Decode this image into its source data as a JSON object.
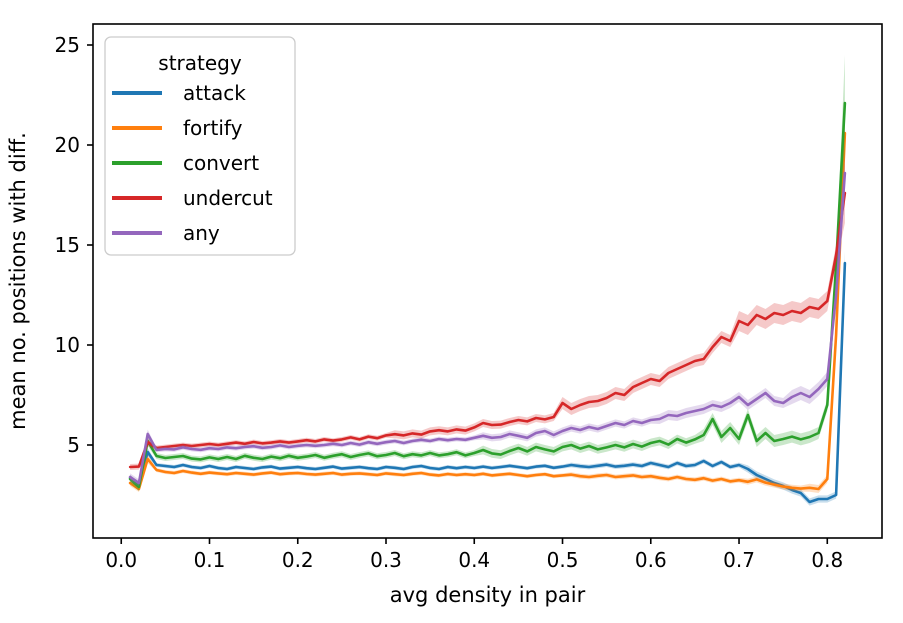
{
  "figure": {
    "background": "#ffffff",
    "text_color": "#000000"
  },
  "chart_data": {
    "type": "line",
    "title": "",
    "xlabel": "avg density in pair",
    "ylabel": "mean no. positions with diff.",
    "grid": false,
    "xlim": [
      -0.032,
      0.862
    ],
    "ylim": [
      0.35,
      26.05
    ],
    "x_ticks": [
      0.0,
      0.1,
      0.2,
      0.3,
      0.4,
      0.5,
      0.6,
      0.7,
      0.8
    ],
    "x_tick_labels": [
      "0.0",
      "0.1",
      "0.2",
      "0.3",
      "0.4",
      "0.5",
      "0.6",
      "0.7",
      "0.8"
    ],
    "y_ticks": [
      5,
      10,
      15,
      20,
      25
    ],
    "y_tick_labels": [
      "5",
      "10",
      "15",
      "20",
      "25"
    ],
    "legend": {
      "title": "strategy",
      "position": "upper left",
      "frame_color": "#cccccc"
    },
    "x": [
      0.01,
      0.02,
      0.03,
      0.04,
      0.05,
      0.06,
      0.07,
      0.08,
      0.09,
      0.1,
      0.11,
      0.12,
      0.13,
      0.14,
      0.15,
      0.16,
      0.17,
      0.18,
      0.19,
      0.2,
      0.21,
      0.22,
      0.23,
      0.24,
      0.25,
      0.26,
      0.27,
      0.28,
      0.29,
      0.3,
      0.31,
      0.32,
      0.33,
      0.34,
      0.35,
      0.36,
      0.37,
      0.38,
      0.39,
      0.4,
      0.41,
      0.42,
      0.43,
      0.44,
      0.45,
      0.46,
      0.47,
      0.48,
      0.49,
      0.5,
      0.51,
      0.52,
      0.53,
      0.54,
      0.55,
      0.56,
      0.57,
      0.58,
      0.59,
      0.6,
      0.61,
      0.62,
      0.63,
      0.64,
      0.65,
      0.66,
      0.67,
      0.68,
      0.69,
      0.7,
      0.71,
      0.72,
      0.73,
      0.74,
      0.75,
      0.76,
      0.77,
      0.78,
      0.79,
      0.8,
      0.81,
      0.82
    ],
    "series": [
      {
        "name": "attack",
        "color": "#1f77b4",
        "values": [
          3.35,
          2.95,
          4.65,
          4.0,
          3.95,
          3.9,
          4.0,
          3.9,
          3.85,
          3.95,
          3.85,
          3.8,
          3.9,
          3.85,
          3.8,
          3.88,
          3.92,
          3.82,
          3.86,
          3.9,
          3.84,
          3.8,
          3.86,
          3.92,
          3.82,
          3.86,
          3.9,
          3.84,
          3.8,
          3.9,
          3.86,
          3.8,
          3.9,
          3.95,
          3.85,
          3.8,
          3.9,
          3.84,
          3.9,
          3.85,
          3.92,
          3.85,
          3.9,
          3.96,
          3.9,
          3.84,
          3.92,
          3.96,
          3.86,
          3.92,
          4.0,
          3.94,
          3.9,
          3.96,
          4.02,
          3.92,
          3.96,
          4.02,
          3.95,
          4.1,
          4.0,
          3.9,
          4.1,
          3.95,
          4.0,
          4.2,
          3.95,
          4.15,
          3.9,
          4.0,
          3.8,
          3.5,
          3.3,
          3.1,
          2.95,
          2.75,
          2.6,
          2.15,
          2.3,
          2.3,
          2.5,
          14.1
        ],
        "band": [
          0.15,
          0.15,
          0.2,
          0.1,
          0.1,
          0.1,
          0.1,
          0.1,
          0.1,
          0.1,
          0.1,
          0.1,
          0.1,
          0.1,
          0.1,
          0.1,
          0.1,
          0.1,
          0.1,
          0.1,
          0.1,
          0.1,
          0.1,
          0.1,
          0.1,
          0.1,
          0.1,
          0.1,
          0.1,
          0.1,
          0.1,
          0.1,
          0.1,
          0.1,
          0.1,
          0.1,
          0.1,
          0.1,
          0.1,
          0.1,
          0.1,
          0.1,
          0.1,
          0.1,
          0.1,
          0.1,
          0.1,
          0.1,
          0.1,
          0.1,
          0.12,
          0.12,
          0.12,
          0.12,
          0.12,
          0.12,
          0.12,
          0.12,
          0.12,
          0.12,
          0.12,
          0.12,
          0.12,
          0.12,
          0.12,
          0.12,
          0.12,
          0.12,
          0.12,
          0.12,
          0.18,
          0.18,
          0.18,
          0.18,
          0.18,
          0.18,
          0.18,
          0.18,
          0.18,
          0.18,
          0.18,
          0.6
        ]
      },
      {
        "name": "fortify",
        "color": "#ff7f0e",
        "values": [
          3.1,
          2.8,
          4.3,
          3.75,
          3.65,
          3.6,
          3.7,
          3.62,
          3.56,
          3.62,
          3.58,
          3.54,
          3.6,
          3.56,
          3.52,
          3.58,
          3.62,
          3.54,
          3.58,
          3.6,
          3.55,
          3.52,
          3.56,
          3.6,
          3.52,
          3.56,
          3.58,
          3.54,
          3.5,
          3.58,
          3.54,
          3.5,
          3.56,
          3.6,
          3.52,
          3.48,
          3.55,
          3.5,
          3.54,
          3.5,
          3.56,
          3.48,
          3.52,
          3.56,
          3.5,
          3.44,
          3.5,
          3.54,
          3.44,
          3.48,
          3.52,
          3.44,
          3.4,
          3.46,
          3.5,
          3.4,
          3.44,
          3.48,
          3.4,
          3.44,
          3.36,
          3.3,
          3.4,
          3.3,
          3.26,
          3.34,
          3.22,
          3.3,
          3.18,
          3.24,
          3.16,
          3.28,
          3.12,
          3.02,
          2.92,
          2.86,
          2.82,
          2.86,
          2.8,
          3.3,
          10.5,
          20.6
        ],
        "band": [
          0.15,
          0.15,
          0.2,
          0.1,
          0.1,
          0.1,
          0.1,
          0.1,
          0.1,
          0.1,
          0.1,
          0.1,
          0.1,
          0.1,
          0.1,
          0.1,
          0.1,
          0.1,
          0.1,
          0.1,
          0.1,
          0.1,
          0.1,
          0.1,
          0.1,
          0.1,
          0.1,
          0.1,
          0.1,
          0.1,
          0.1,
          0.1,
          0.1,
          0.1,
          0.1,
          0.1,
          0.1,
          0.1,
          0.1,
          0.1,
          0.1,
          0.1,
          0.1,
          0.1,
          0.1,
          0.1,
          0.1,
          0.1,
          0.1,
          0.1,
          0.12,
          0.12,
          0.12,
          0.12,
          0.12,
          0.12,
          0.12,
          0.12,
          0.12,
          0.12,
          0.12,
          0.12,
          0.12,
          0.12,
          0.12,
          0.12,
          0.12,
          0.12,
          0.12,
          0.12,
          0.15,
          0.15,
          0.15,
          0.15,
          0.15,
          0.15,
          0.15,
          0.2,
          0.2,
          0.2,
          0.2,
          1.0
        ]
      },
      {
        "name": "convert",
        "color": "#2ca02c",
        "values": [
          3.3,
          2.9,
          5.2,
          4.45,
          4.35,
          4.4,
          4.45,
          4.32,
          4.28,
          4.38,
          4.3,
          4.4,
          4.3,
          4.46,
          4.36,
          4.3,
          4.42,
          4.34,
          4.46,
          4.36,
          4.42,
          4.5,
          4.36,
          4.46,
          4.54,
          4.4,
          4.5,
          4.58,
          4.44,
          4.5,
          4.6,
          4.44,
          4.54,
          4.48,
          4.6,
          4.48,
          4.54,
          4.64,
          4.48,
          4.6,
          4.75,
          4.58,
          4.52,
          4.7,
          4.85,
          4.68,
          4.9,
          4.78,
          4.68,
          4.9,
          5.0,
          4.82,
          4.95,
          4.78,
          4.88,
          5.0,
          4.88,
          5.05,
          4.92,
          5.1,
          5.2,
          5.02,
          5.3,
          5.12,
          5.28,
          5.5,
          6.3,
          5.4,
          5.85,
          5.3,
          6.5,
          5.2,
          5.6,
          5.2,
          5.3,
          5.42,
          5.28,
          5.4,
          5.6,
          7.0,
          14.0,
          22.1
        ],
        "band": [
          0.2,
          0.2,
          0.25,
          0.15,
          0.15,
          0.15,
          0.15,
          0.15,
          0.15,
          0.15,
          0.15,
          0.15,
          0.15,
          0.15,
          0.15,
          0.15,
          0.15,
          0.15,
          0.15,
          0.15,
          0.15,
          0.15,
          0.15,
          0.15,
          0.15,
          0.15,
          0.15,
          0.15,
          0.15,
          0.15,
          0.15,
          0.15,
          0.15,
          0.15,
          0.15,
          0.15,
          0.15,
          0.15,
          0.15,
          0.15,
          0.22,
          0.22,
          0.22,
          0.22,
          0.22,
          0.22,
          0.22,
          0.22,
          0.22,
          0.22,
          0.22,
          0.22,
          0.22,
          0.22,
          0.22,
          0.22,
          0.22,
          0.22,
          0.22,
          0.22,
          0.22,
          0.22,
          0.22,
          0.22,
          0.22,
          0.3,
          0.3,
          0.3,
          0.3,
          0.3,
          0.3,
          0.3,
          0.3,
          0.3,
          0.3,
          0.3,
          0.3,
          0.3,
          0.3,
          0.3,
          0.3,
          2.4
        ]
      },
      {
        "name": "undercut",
        "color": "#d62728",
        "values": [
          3.9,
          3.92,
          5.15,
          4.85,
          4.9,
          4.95,
          5.0,
          4.95,
          5.0,
          5.05,
          5.0,
          5.06,
          5.12,
          5.06,
          5.15,
          5.08,
          5.12,
          5.18,
          5.12,
          5.18,
          5.24,
          5.18,
          5.28,
          5.22,
          5.28,
          5.38,
          5.28,
          5.42,
          5.34,
          5.48,
          5.54,
          5.48,
          5.58,
          5.52,
          5.68,
          5.74,
          5.68,
          5.78,
          5.72,
          5.88,
          6.1,
          6.0,
          6.02,
          6.15,
          6.25,
          6.18,
          6.35,
          6.28,
          6.4,
          7.1,
          6.8,
          7.0,
          7.15,
          7.2,
          7.35,
          7.6,
          7.5,
          7.9,
          8.1,
          8.3,
          8.2,
          8.6,
          8.8,
          9.0,
          9.2,
          9.3,
          9.9,
          10.4,
          10.2,
          11.2,
          11.0,
          11.5,
          11.3,
          11.6,
          11.5,
          11.7,
          11.6,
          11.9,
          11.8,
          12.2,
          14.5,
          17.6
        ],
        "band": [
          0.15,
          0.15,
          0.2,
          0.12,
          0.12,
          0.12,
          0.12,
          0.12,
          0.12,
          0.12,
          0.12,
          0.12,
          0.12,
          0.12,
          0.12,
          0.12,
          0.12,
          0.12,
          0.12,
          0.12,
          0.12,
          0.12,
          0.12,
          0.12,
          0.12,
          0.12,
          0.12,
          0.12,
          0.12,
          0.12,
          0.2,
          0.2,
          0.2,
          0.2,
          0.2,
          0.2,
          0.2,
          0.2,
          0.2,
          0.2,
          0.2,
          0.2,
          0.2,
          0.2,
          0.2,
          0.2,
          0.2,
          0.2,
          0.2,
          0.3,
          0.3,
          0.3,
          0.3,
          0.3,
          0.3,
          0.3,
          0.3,
          0.3,
          0.3,
          0.3,
          0.3,
          0.3,
          0.3,
          0.3,
          0.3,
          0.3,
          0.3,
          0.3,
          0.3,
          0.5,
          0.5,
          0.5,
          0.5,
          0.5,
          0.5,
          0.5,
          0.5,
          0.5,
          0.5,
          0.5,
          0.5,
          1.5
        ]
      },
      {
        "name": "any",
        "color": "#9467bd",
        "values": [
          3.4,
          3.1,
          5.55,
          4.75,
          4.8,
          4.78,
          4.88,
          4.8,
          4.76,
          4.84,
          4.8,
          4.88,
          4.84,
          4.9,
          4.94,
          4.86,
          4.9,
          4.98,
          4.9,
          4.96,
          5.0,
          4.96,
          5.0,
          5.06,
          5.0,
          5.1,
          5.02,
          5.14,
          5.06,
          5.14,
          5.2,
          5.1,
          5.2,
          5.26,
          5.2,
          5.3,
          5.24,
          5.3,
          5.26,
          5.36,
          5.46,
          5.36,
          5.4,
          5.55,
          5.46,
          5.36,
          5.6,
          5.7,
          5.5,
          5.7,
          5.85,
          5.75,
          5.9,
          5.8,
          5.95,
          6.1,
          6.0,
          6.2,
          6.1,
          6.25,
          6.3,
          6.5,
          6.45,
          6.6,
          6.7,
          6.8,
          7.0,
          6.9,
          7.1,
          7.4,
          7.0,
          7.3,
          7.6,
          7.2,
          7.1,
          7.4,
          7.6,
          7.4,
          7.8,
          8.3,
          12.5,
          18.6
        ],
        "band": [
          0.18,
          0.18,
          0.22,
          0.12,
          0.12,
          0.12,
          0.12,
          0.12,
          0.12,
          0.12,
          0.12,
          0.12,
          0.12,
          0.12,
          0.12,
          0.12,
          0.12,
          0.12,
          0.12,
          0.12,
          0.12,
          0.12,
          0.12,
          0.12,
          0.12,
          0.12,
          0.12,
          0.12,
          0.12,
          0.12,
          0.12,
          0.12,
          0.12,
          0.12,
          0.12,
          0.12,
          0.12,
          0.12,
          0.12,
          0.12,
          0.18,
          0.18,
          0.18,
          0.18,
          0.18,
          0.18,
          0.18,
          0.18,
          0.18,
          0.18,
          0.18,
          0.18,
          0.18,
          0.18,
          0.18,
          0.18,
          0.18,
          0.18,
          0.18,
          0.18,
          0.25,
          0.25,
          0.25,
          0.25,
          0.25,
          0.25,
          0.25,
          0.25,
          0.25,
          0.25,
          0.25,
          0.25,
          0.25,
          0.25,
          0.25,
          0.35,
          0.35,
          0.35,
          0.35,
          0.35,
          0.35,
          1.0
        ]
      }
    ]
  }
}
